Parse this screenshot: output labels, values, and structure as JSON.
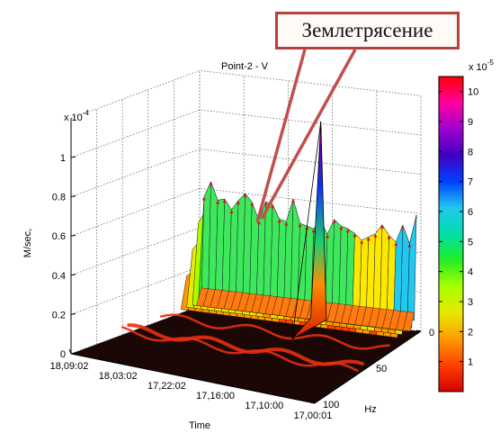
{
  "chart_data": {
    "type": "surface3d",
    "title": "Point-2 - V",
    "zlabel": "M/sec,",
    "xlabel": "Time",
    "ylabel": "Hz",
    "z_multiplier": "x 10-4",
    "z_ticks": [
      "0",
      "0.2",
      "0.4",
      "0.6",
      "0.8",
      "1"
    ],
    "time_ticks": [
      "18,09:02",
      "18,03:02",
      "17,22:02",
      "17,16:00",
      "17,10:00",
      "17,00:01"
    ],
    "hz_ticks": [
      "0",
      "50",
      "100"
    ],
    "colorbar": {
      "multiplier": "x 10-5",
      "ticks": [
        "1",
        "2",
        "3",
        "4",
        "5",
        "6",
        "7",
        "8",
        "9",
        "10"
      ],
      "colors": [
        "#d40000",
        "#ff4000",
        "#ff9a00",
        "#e8e800",
        "#a8ff00",
        "#22ee22",
        "#00ddaa",
        "#22c8ee",
        "#0040ff",
        "#4000c0",
        "#a000d0",
        "#ff00a0",
        "#ff0000"
      ]
    },
    "back_profile": [
      0.56,
      0.64,
      0.55,
      0.56,
      0.51,
      0.56,
      0.6,
      0.56,
      0.47,
      0.57,
      0.56,
      0.49,
      0.48,
      0.6,
      0.48,
      0.47,
      0.46,
      0.51,
      0.44,
      0.52,
      0.49,
      0.48,
      0.46,
      0.43,
      0.45,
      0.47,
      0.52,
      0.47,
      0.44,
      0.53,
      0.44,
      0.59
    ],
    "peak": {
      "time": "17,16:00",
      "hz": 10,
      "value": 1.05
    },
    "annotation": "Землетрясение"
  }
}
